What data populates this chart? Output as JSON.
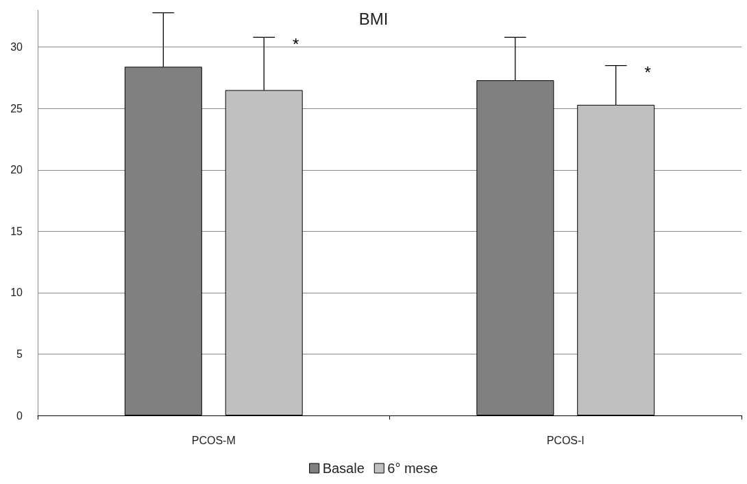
{
  "chart_data": {
    "type": "bar",
    "title": "BMI",
    "categories": [
      "PCOS-M",
      "PCOS-I"
    ],
    "series": [
      {
        "name": "Basale",
        "color": "#808080",
        "values": [
          28.4,
          27.3
        ],
        "errors": [
          [
            28.4,
            32.8
          ],
          [
            27.3,
            30.8
          ]
        ]
      },
      {
        "name": "6° mese",
        "color": "#c0c0c0",
        "values": [
          26.5,
          25.3
        ],
        "errors": [
          [
            26.5,
            30.8
          ],
          [
            25.3,
            28.5
          ]
        ]
      }
    ],
    "ylim": [
      0,
      33
    ],
    "yticks": [
      0,
      5,
      10,
      15,
      20,
      25,
      30
    ],
    "grid": "y",
    "legend": "bottom",
    "annotations": [
      "*",
      "*"
    ]
  }
}
